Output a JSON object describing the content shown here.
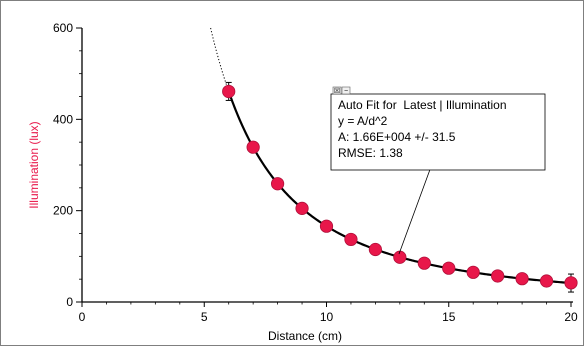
{
  "chart_data": {
    "type": "scatter",
    "xlabel": "Distance (cm)",
    "ylabel": "Illumination (lux)",
    "xlim": [
      0,
      20
    ],
    "ylim": [
      0,
      600
    ],
    "x_ticks": [
      0,
      5,
      10,
      15,
      20
    ],
    "y_ticks": [
      0,
      200,
      400,
      600
    ],
    "grid": false,
    "series": [
      {
        "name": "Latest | Illumination",
        "color": "#e8174a",
        "x": [
          6,
          7,
          8,
          9,
          10,
          11,
          12,
          13,
          14,
          15,
          16,
          17,
          18,
          19,
          20
        ],
        "y": [
          461,
          339,
          259,
          205,
          166,
          137,
          115,
          98,
          85,
          74,
          65,
          57,
          51,
          46,
          42
        ]
      }
    ],
    "fit": {
      "type": "inverse-square",
      "A": 16600,
      "x_range": [
        6,
        20
      ],
      "extrapolated_from": 5.2
    },
    "annotation": {
      "title": "Auto Fit for  Latest | Illumination",
      "equation": "y = A/d^2",
      "param": "A: 1.66E+004 +/- 31.5",
      "rmse": "RMSE: 1.38",
      "close_glyph": "☒",
      "minimize_glyph": "−"
    },
    "colors": {
      "ylabel": "#e8174a",
      "axis": "#000000",
      "fit_line": "#000000",
      "frame": "#7f7f7f"
    }
  }
}
